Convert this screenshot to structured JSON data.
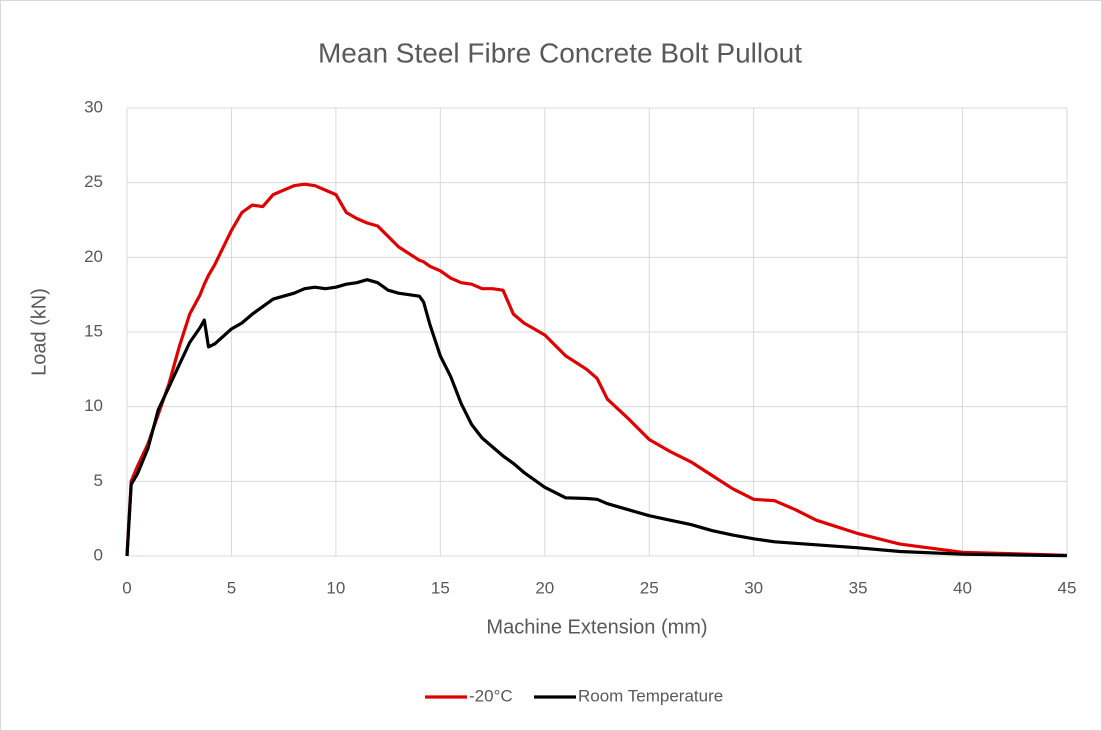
{
  "chart_data": {
    "type": "line",
    "title": "Mean Steel Fibre Concrete Bolt Pullout",
    "xlabel": "Machine Extension (mm)",
    "ylabel": "Load (kN)",
    "x": [
      0,
      0.2,
      0.5,
      1,
      1.5,
      2,
      2.5,
      3,
      3.5,
      3.7,
      3.9,
      4.2,
      5,
      5.5,
      6,
      6.5,
      7,
      8,
      8.5,
      9,
      9.5,
      10,
      10.5,
      11,
      11.5,
      12,
      12.5,
      13,
      14,
      14.2,
      14.5,
      15,
      15.5,
      16,
      16.5,
      17,
      17.5,
      18,
      18.5,
      19,
      20,
      21,
      22,
      22.5,
      23,
      24,
      25,
      26,
      27,
      28,
      29,
      30,
      31,
      32,
      33,
      35,
      37,
      40,
      45
    ],
    "series": [
      {
        "name": "-20°C",
        "color": "#e00000",
        "values": [
          0,
          5,
          6,
          7.5,
          9.5,
          11.5,
          14,
          16.2,
          17.5,
          18.2,
          18.8,
          19.5,
          21.8,
          23,
          23.5,
          23.4,
          24.2,
          24.8,
          24.9,
          24.8,
          24.5,
          24.2,
          23,
          22.6,
          22.3,
          22.1,
          21.4,
          20.7,
          19.8,
          19.7,
          19.4,
          19.1,
          18.6,
          18.3,
          18.2,
          17.9,
          17.9,
          17.8,
          16.2,
          15.6,
          14.8,
          13.4,
          12.5,
          11.9,
          10.5,
          9.2,
          7.8,
          7,
          6.3,
          5.4,
          4.5,
          3.8,
          3.7,
          3.1,
          2.4,
          1.5,
          0.8,
          0.25,
          0.05
        ]
      },
      {
        "name": "Room Temperature",
        "color": "#000000",
        "values": [
          0,
          4.8,
          5.5,
          7.2,
          9.8,
          11.3,
          12.8,
          14.3,
          15.3,
          15.8,
          14,
          14.2,
          15.2,
          15.6,
          16.2,
          16.7,
          17.2,
          17.6,
          17.9,
          18,
          17.9,
          18,
          18.2,
          18.3,
          18.5,
          18.3,
          17.8,
          17.6,
          17.4,
          17,
          15.5,
          13.4,
          12,
          10.2,
          8.8,
          7.9,
          7.3,
          6.7,
          6.2,
          5.6,
          4.6,
          3.9,
          3.85,
          3.8,
          3.5,
          3.1,
          2.7,
          2.4,
          2.1,
          1.7,
          1.4,
          1.15,
          0.95,
          0.85,
          0.75,
          0.55,
          0.3,
          0.12,
          0.02
        ]
      }
    ],
    "xlim": [
      0,
      45
    ],
    "xticks": [
      0,
      5,
      10,
      15,
      20,
      25,
      30,
      35,
      40,
      45
    ],
    "ylim": [
      0,
      30
    ],
    "yticks": [
      0,
      5,
      10,
      15,
      20,
      25,
      30
    ],
    "grid": true,
    "legend": "bottom"
  }
}
